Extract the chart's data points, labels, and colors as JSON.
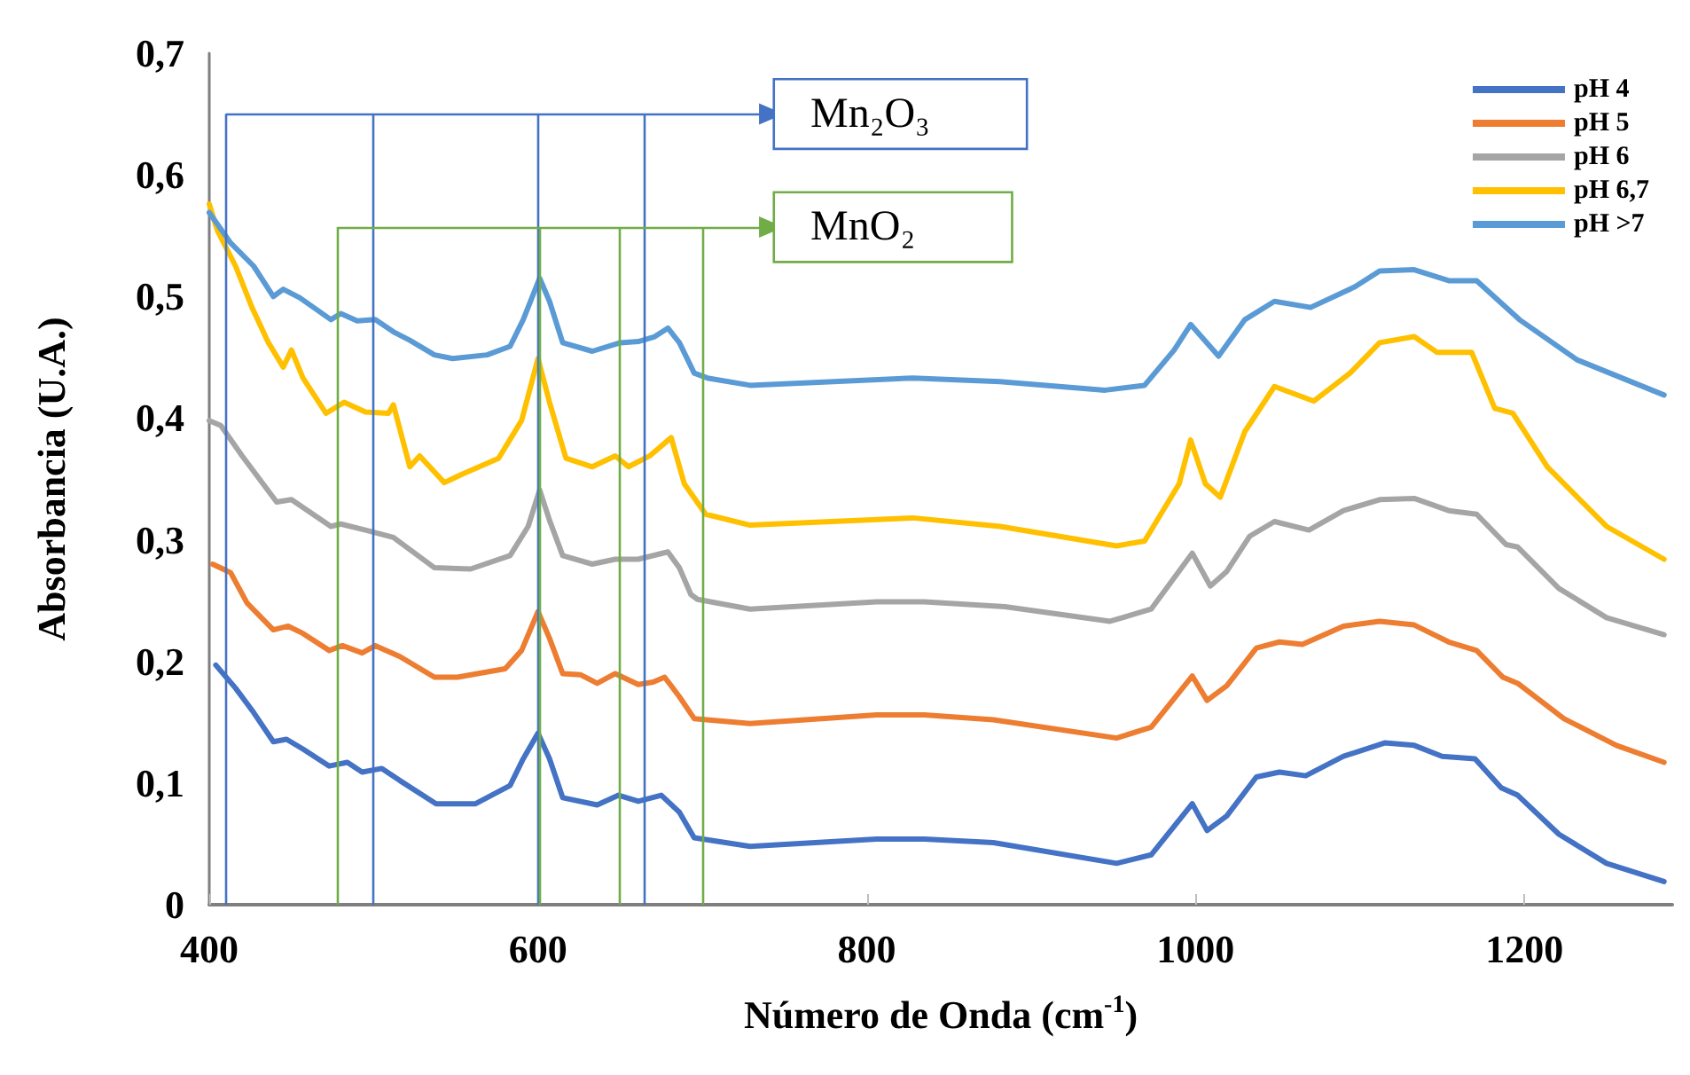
{
  "chart_data": {
    "type": "line",
    "xlabel": "Número de Onda (cm$^{-1}$)",
    "ylabel": "Absorbancia (U.A.)",
    "xlim": [
      400,
      1290
    ],
    "xticks": [
      400,
      600,
      800,
      1000,
      1200
    ],
    "ylim": [
      0,
      0.7
    ],
    "yticks": [
      {
        "value": 0,
        "label": "0"
      },
      {
        "value": 0.1,
        "label": "0,1"
      },
      {
        "value": 0.2,
        "label": "0,2"
      },
      {
        "value": 0.3,
        "label": "0,3"
      },
      {
        "value": 0.4,
        "label": "0,4"
      },
      {
        "value": 0.5,
        "label": "0,5"
      },
      {
        "value": 0.6,
        "label": "0,6"
      },
      {
        "value": 0.7,
        "label": "0,7"
      }
    ],
    "grid": false,
    "legend": "top right",
    "marker": "none",
    "line_style": "solid",
    "series": [
      {
        "name": "pH 4",
        "color": "#4472c4",
        "x": [
          404,
          416,
          427,
          439,
          447,
          457,
          473,
          484,
          493,
          505,
          516,
          538,
          562,
          583,
          591,
          600,
          607,
          615,
          636,
          649,
          661,
          675,
          686,
          695,
          729,
          806,
          835,
          877,
          952,
          973,
          998,
          1007,
          1019,
          1037,
          1051,
          1067,
          1090,
          1115,
          1133,
          1150,
          1170,
          1186,
          1196,
          1221,
          1250,
          1285
        ],
        "values": [
          0.197,
          0.178,
          0.158,
          0.134,
          0.136,
          0.128,
          0.114,
          0.117,
          0.109,
          0.112,
          0.102,
          0.083,
          0.083,
          0.098,
          0.12,
          0.141,
          0.12,
          0.088,
          0.082,
          0.09,
          0.085,
          0.09,
          0.076,
          0.055,
          0.048,
          0.054,
          0.054,
          0.051,
          0.034,
          0.041,
          0.083,
          0.061,
          0.073,
          0.105,
          0.109,
          0.106,
          0.122,
          0.133,
          0.131,
          0.122,
          0.12,
          0.096,
          0.09,
          0.058,
          0.034,
          0.019
        ]
      },
      {
        "name": "pH 5",
        "color": "#ed7d31",
        "x": [
          402,
          413,
          423,
          439,
          448,
          457,
          473,
          481,
          493,
          501,
          516,
          537,
          551,
          580,
          590,
          600,
          607,
          615,
          626,
          636,
          647,
          661,
          670,
          677,
          686,
          695,
          729,
          806,
          835,
          877,
          952,
          973,
          998,
          1007,
          1019,
          1037,
          1051,
          1065,
          1090,
          1112,
          1133,
          1154,
          1171,
          1187,
          1196,
          1224,
          1256,
          1285
        ],
        "values": [
          0.28,
          0.273,
          0.248,
          0.226,
          0.229,
          0.223,
          0.209,
          0.213,
          0.207,
          0.213,
          0.204,
          0.187,
          0.187,
          0.194,
          0.209,
          0.241,
          0.219,
          0.19,
          0.189,
          0.182,
          0.19,
          0.181,
          0.183,
          0.187,
          0.171,
          0.153,
          0.149,
          0.156,
          0.156,
          0.152,
          0.137,
          0.146,
          0.188,
          0.168,
          0.18,
          0.211,
          0.216,
          0.214,
          0.229,
          0.233,
          0.23,
          0.216,
          0.209,
          0.187,
          0.182,
          0.153,
          0.131,
          0.117
        ]
      },
      {
        "name": "pH 6",
        "color": "#a5a5a5",
        "x": [
          400,
          407,
          420,
          441,
          450,
          474,
          480,
          495,
          512,
          537,
          559,
          583,
          594,
          601,
          607,
          615,
          633,
          647,
          661,
          679,
          686,
          693,
          697,
          729,
          806,
          835,
          884,
          948,
          973,
          998,
          1009,
          1019,
          1033,
          1048,
          1069,
          1090,
          1112,
          1133,
          1154,
          1171,
          1189,
          1196,
          1221,
          1250,
          1285
        ],
        "values": [
          0.398,
          0.394,
          0.369,
          0.331,
          0.333,
          0.311,
          0.313,
          0.308,
          0.302,
          0.277,
          0.276,
          0.287,
          0.311,
          0.341,
          0.316,
          0.287,
          0.28,
          0.284,
          0.284,
          0.29,
          0.277,
          0.255,
          0.251,
          0.243,
          0.249,
          0.249,
          0.245,
          0.233,
          0.243,
          0.289,
          0.262,
          0.274,
          0.303,
          0.315,
          0.308,
          0.324,
          0.333,
          0.334,
          0.324,
          0.321,
          0.296,
          0.294,
          0.26,
          0.236,
          0.222
        ]
      },
      {
        "name": "pH 6,7",
        "color": "#ffc000",
        "x": [
          400,
          405,
          416,
          426,
          436,
          445,
          450,
          457,
          471,
          482,
          495,
          509,
          512,
          522,
          528,
          543,
          554,
          576,
          590,
          600,
          607,
          617,
          633,
          647,
          655,
          668,
          681,
          689,
          702,
          729,
          828,
          881,
          952,
          969,
          990,
          997,
          1006,
          1015,
          1030,
          1048,
          1072,
          1094,
          1112,
          1133,
          1147,
          1168,
          1182,
          1193,
          1214,
          1250,
          1285
        ],
        "values": [
          0.576,
          0.554,
          0.525,
          0.491,
          0.462,
          0.442,
          0.456,
          0.433,
          0.404,
          0.413,
          0.405,
          0.404,
          0.411,
          0.36,
          0.369,
          0.347,
          0.354,
          0.367,
          0.398,
          0.449,
          0.413,
          0.367,
          0.36,
          0.369,
          0.36,
          0.369,
          0.384,
          0.346,
          0.321,
          0.312,
          0.318,
          0.311,
          0.295,
          0.299,
          0.346,
          0.382,
          0.346,
          0.335,
          0.389,
          0.426,
          0.414,
          0.437,
          0.462,
          0.467,
          0.454,
          0.454,
          0.408,
          0.404,
          0.36,
          0.311,
          0.284
        ]
      },
      {
        "name": "pH >7",
        "color": "#5b9bd5",
        "x": [
          400,
          413,
          427,
          439,
          445,
          455,
          474,
          480,
          490,
          501,
          512,
          522,
          537,
          548,
          569,
          583,
          591,
          601,
          607,
          615,
          633,
          650,
          661,
          671,
          679,
          686,
          695,
          703,
          729,
          828,
          881,
          945,
          969,
          987,
          997,
          1014,
          1030,
          1048,
          1070,
          1097,
          1112,
          1133,
          1154,
          1171,
          1197,
          1232,
          1285
        ],
        "values": [
          0.569,
          0.544,
          0.525,
          0.5,
          0.506,
          0.499,
          0.481,
          0.486,
          0.48,
          0.481,
          0.471,
          0.464,
          0.452,
          0.449,
          0.452,
          0.459,
          0.481,
          0.515,
          0.496,
          0.462,
          0.455,
          0.462,
          0.463,
          0.467,
          0.474,
          0.462,
          0.437,
          0.433,
          0.427,
          0.433,
          0.43,
          0.423,
          0.427,
          0.456,
          0.477,
          0.451,
          0.481,
          0.496,
          0.491,
          0.508,
          0.521,
          0.522,
          0.513,
          0.513,
          0.481,
          0.448,
          0.419
        ]
      }
    ],
    "ref_lines": [
      {
        "axis": "x",
        "value": 410,
        "color": "#4472c4"
      },
      {
        "axis": "x",
        "value": 500,
        "color": "#4472c4"
      },
      {
        "axis": "x",
        "value": 600,
        "color": "#4472c4"
      },
      {
        "axis": "x",
        "value": 665,
        "color": "#4472c4"
      },
      {
        "axis": "x",
        "value": 478,
        "color": "#70ad47"
      },
      {
        "axis": "x",
        "value": 601,
        "color": "#70ad47"
      },
      {
        "axis": "x",
        "value": 650,
        "color": "#70ad47"
      },
      {
        "axis": "x",
        "value": 700,
        "color": "#70ad47"
      }
    ],
    "annotations": [
      {
        "text": "Mn₂O₃",
        "x": 742,
        "y": 0.65
      },
      {
        "text": "MnO₂",
        "x": 742,
        "y": 0.557
      }
    ]
  }
}
